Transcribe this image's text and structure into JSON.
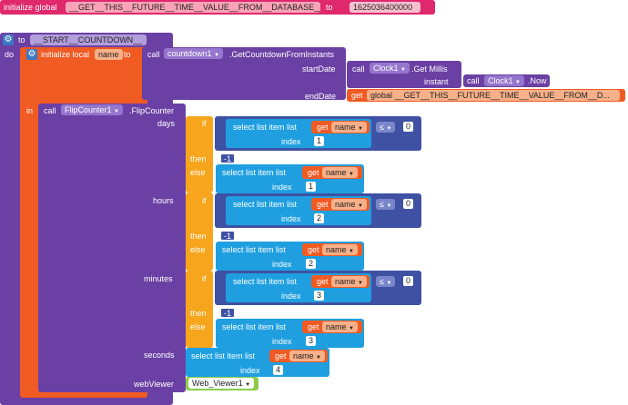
{
  "global_init": {
    "prefix": "initialize global",
    "name": "__GET__THIS__FUTURE__TIME__VALUE__FROM__DATABASE__",
    "to": "to",
    "value": "1625036400000"
  },
  "proc": {
    "to": "to",
    "name": "__START__COUNTDOWN__",
    "do": "do"
  },
  "local_init": {
    "prefix": "initialize local",
    "name": "name",
    "to": "to",
    "in": "in"
  },
  "countdown_call": {
    "call": "call",
    "component": "countdown1",
    "method": ".GetCountdownFromInstants",
    "start_label": "startDate",
    "end_label": "endDate"
  },
  "clock_millis": {
    "call": "call",
    "component": "Clock1",
    "method": ".Get Millis",
    "instant_label": "instant"
  },
  "clock_now": {
    "call": "call",
    "component": "Clock1",
    "method": ".Now"
  },
  "end_get": {
    "get": "get",
    "var": "global __GET__THIS__FUTURE__TIME__VALUE__FROM__D..."
  },
  "flip_call": {
    "call": "call",
    "component": "FlipCounter1",
    "method": ".FlipCounter",
    "days": "days",
    "hours": "hours",
    "minutes": "minutes",
    "seconds": "seconds",
    "webviewer": "webViewer",
    "webviewer_value": "Web_Viewer1"
  },
  "common": {
    "if": "if",
    "then": "then",
    "else": "else",
    "select": "select list item  list",
    "index": "index",
    "get": "get",
    "var": "name",
    "op": "≤",
    "zero": "0",
    "minus_one": "-1"
  },
  "indices": [
    "1",
    "2",
    "3",
    "4"
  ]
}
